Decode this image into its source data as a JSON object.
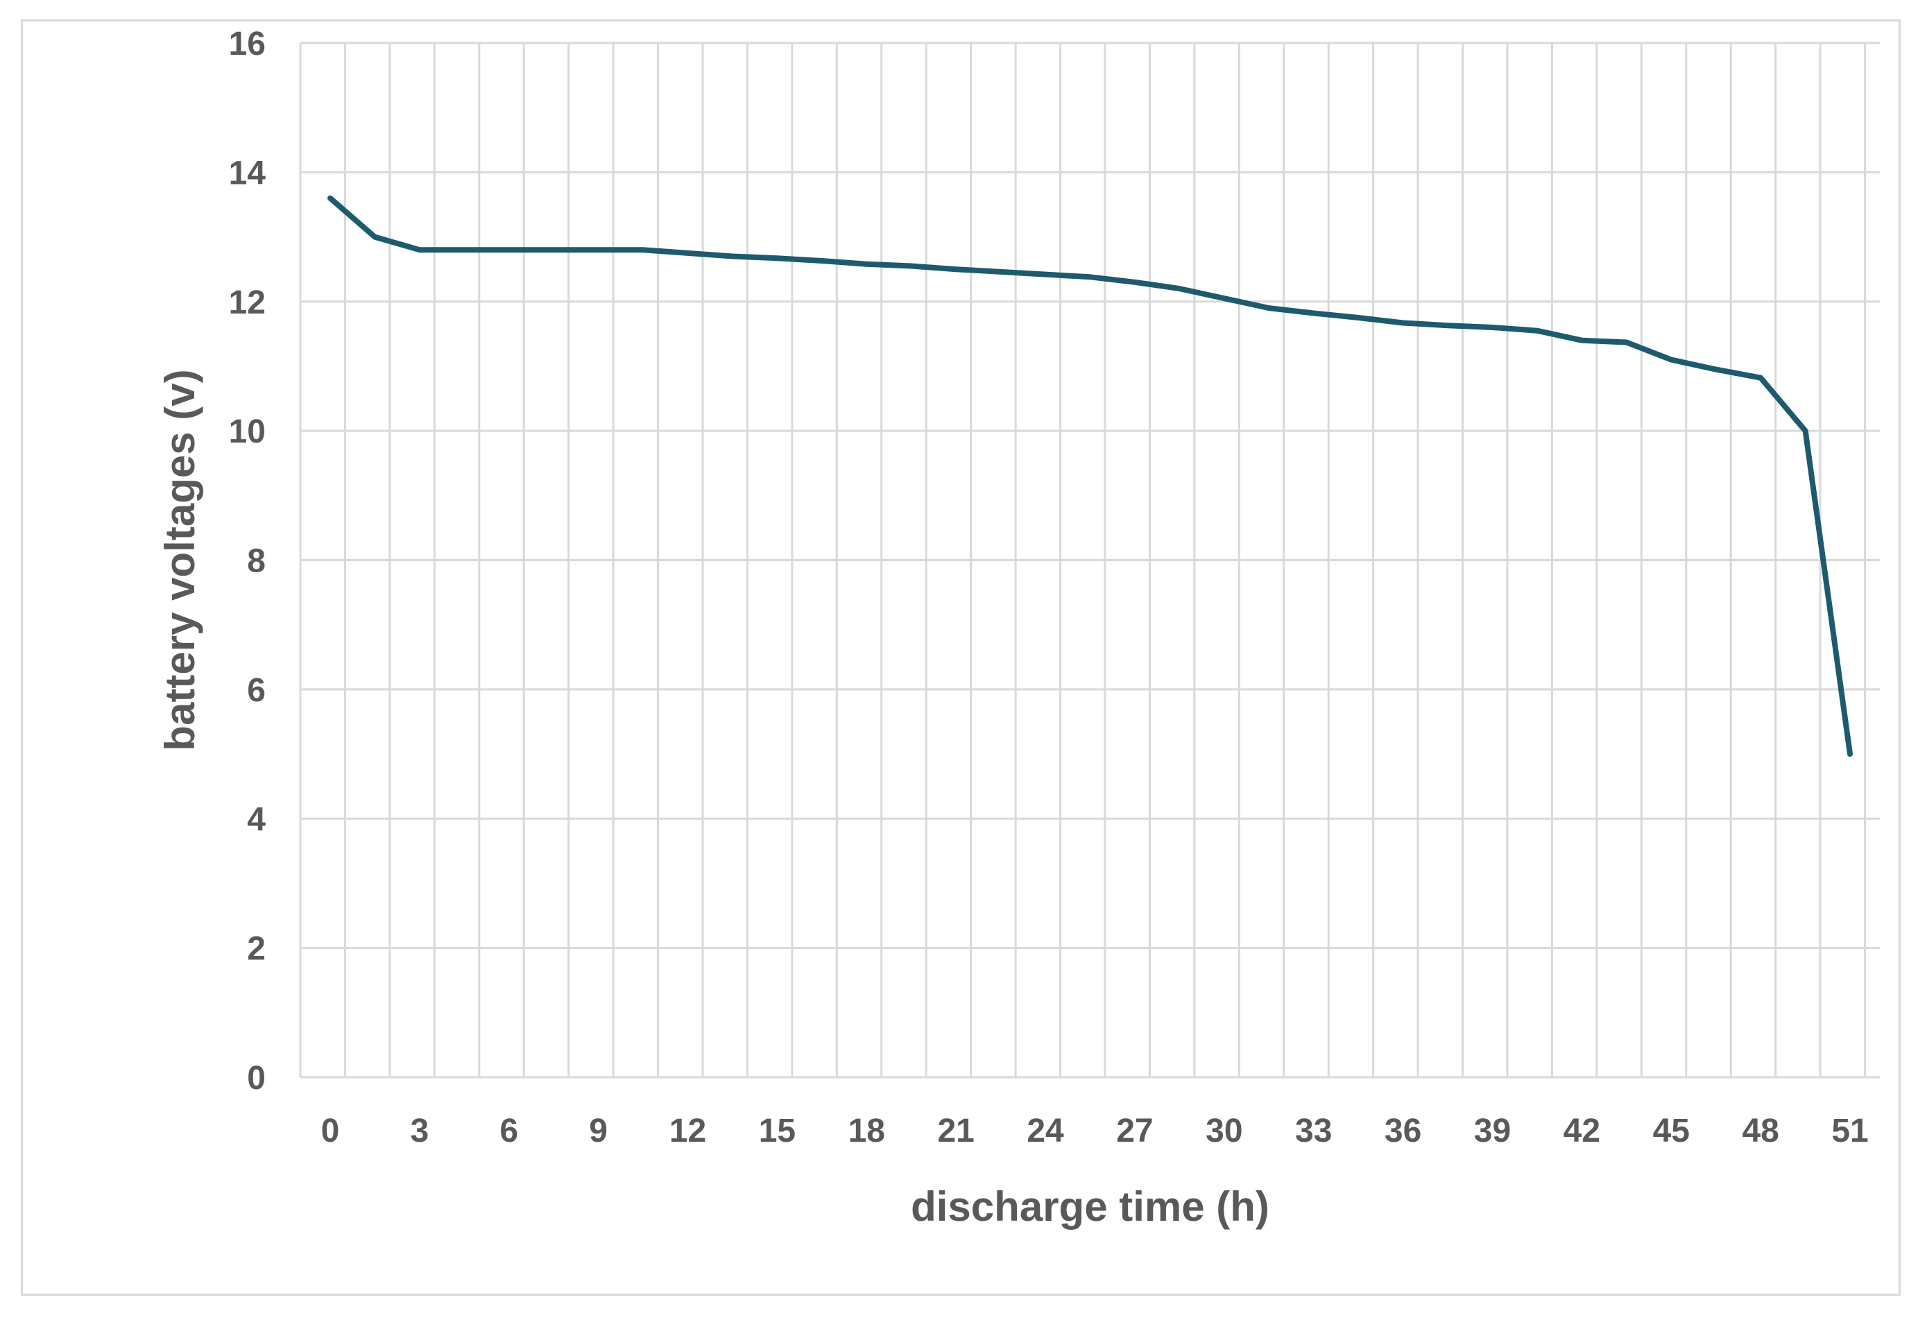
{
  "chart_data": {
    "type": "line",
    "title": "",
    "xlabel": "discharge time (h)",
    "ylabel": "battery voltages (v)",
    "xlim": [
      -1,
      52
    ],
    "ylim": [
      0,
      16
    ],
    "x_ticks": [
      0,
      3,
      6,
      9,
      12,
      15,
      18,
      21,
      24,
      27,
      30,
      33,
      36,
      39,
      42,
      45,
      48,
      51
    ],
    "y_ticks": [
      0,
      2,
      4,
      6,
      8,
      10,
      12,
      14,
      16
    ],
    "x_grid_step": 1.5,
    "grid": true,
    "legend": "none",
    "series": [
      {
        "color": "#1e5a6e",
        "x": [
          0,
          1.5,
          3,
          4.5,
          6,
          7.5,
          9,
          10.5,
          12,
          13.5,
          15,
          16.5,
          18,
          19.5,
          21,
          22.5,
          24,
          25.5,
          27,
          28.5,
          30,
          31.5,
          33,
          34.5,
          36,
          37.5,
          39,
          40.5,
          42,
          43.5,
          45,
          46.5,
          48,
          49.5,
          51
        ],
        "y": [
          13.6,
          13.0,
          12.8,
          12.8,
          12.8,
          12.8,
          12.8,
          12.8,
          12.75,
          12.7,
          12.67,
          12.63,
          12.58,
          12.55,
          12.5,
          12.46,
          12.42,
          12.38,
          12.3,
          12.2,
          12.05,
          11.9,
          11.82,
          11.75,
          11.67,
          11.63,
          11.6,
          11.55,
          11.4,
          11.37,
          11.1,
          10.95,
          10.82,
          10.0,
          5.0
        ]
      }
    ]
  }
}
